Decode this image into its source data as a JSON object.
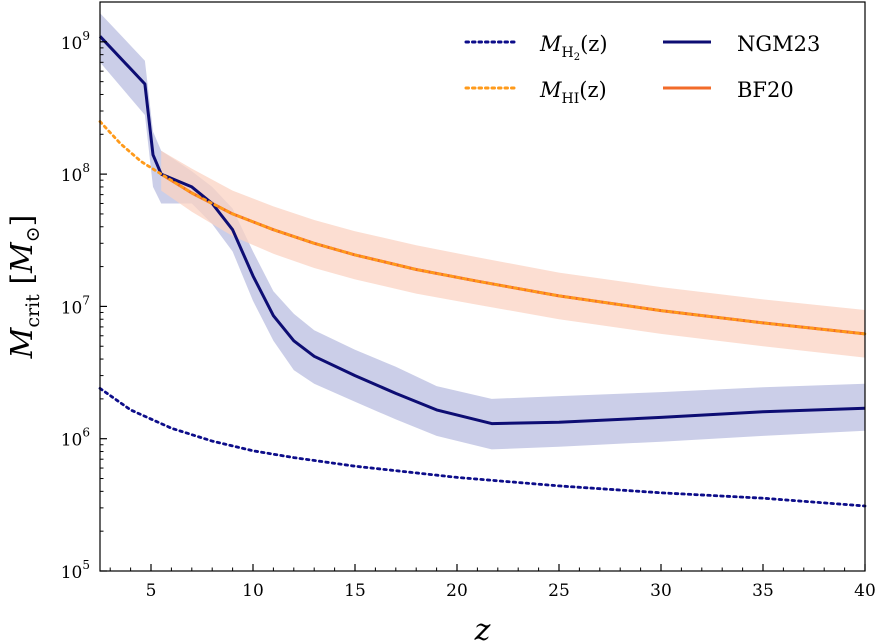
{
  "chart_data": {
    "type": "line",
    "xlabel": "z",
    "ylabel": "M_crit [M_⊙]",
    "ylabel_main": "M",
    "ylabel_sub": "crit",
    "ylabel_unit_open": " [",
    "ylabel_unit_main": "M",
    "ylabel_unit_sub": "⊙",
    "ylabel_unit_close": "]",
    "xlim": [
      2.5,
      40
    ],
    "ylim": [
      100000,
      2000000000
    ],
    "yscale": "log",
    "grid": false,
    "legend_position": "top-right",
    "x_ticks": [
      5,
      10,
      15,
      20,
      25,
      30,
      35,
      40
    ],
    "x_tick_labels": [
      "5",
      "10",
      "15",
      "20",
      "25",
      "30",
      "35",
      "40"
    ],
    "y_ticks": [
      100000,
      1000000,
      10000000,
      100000000,
      1000000000
    ],
    "y_tick_labels": [
      {
        "base": "10",
        "exp": "5"
      },
      {
        "base": "10",
        "exp": "6"
      },
      {
        "base": "10",
        "exp": "7"
      },
      {
        "base": "10",
        "exp": "8"
      },
      {
        "base": "10",
        "exp": "9"
      }
    ],
    "series": [
      {
        "name": "NGM23",
        "label_text": "NGM23",
        "style": "solid",
        "color": "#0d0d73",
        "band_color": "#b9bde0",
        "x": [
          2.5,
          4.7,
          5.1,
          5.5,
          7,
          8,
          9,
          10,
          11,
          12,
          13,
          15,
          17,
          19,
          21.7,
          25,
          30,
          35,
          40
        ],
        "y": [
          1100000000,
          480000000,
          140000000,
          100000000,
          80000000,
          60000000,
          38000000,
          17000000,
          8500000,
          5500000,
          4200000,
          3000000,
          2200000,
          1650000,
          1300000,
          1330000,
          1450000,
          1600000,
          1700000
        ],
        "y_low": [
          700000000,
          280000000,
          80000000,
          60000000,
          60000000,
          42000000,
          26000000,
          11000000,
          5500000,
          3300000,
          2600000,
          1900000,
          1400000,
          1050000,
          830000,
          870000,
          950000,
          1050000,
          1150000
        ],
        "y_high": [
          1650000000,
          720000000,
          210000000,
          150000000,
          105000000,
          80000000,
          55000000,
          26000000,
          13000000,
          8800000,
          6600000,
          4700000,
          3500000,
          2500000,
          2000000,
          2100000,
          2250000,
          2450000,
          2600000
        ]
      },
      {
        "name": "BF20",
        "label_text": "BF20",
        "style": "solid",
        "color": "#f26b2a",
        "band_color": "#fbd3c3",
        "x": [
          5.5,
          7,
          9,
          11,
          13,
          15,
          18,
          21,
          25,
          30,
          35,
          40
        ],
        "y": [
          100000000,
          72000000,
          50000000,
          38000000,
          30000000,
          24500000,
          19000000,
          15500000,
          12000000,
          9300000,
          7500000,
          6200000
        ],
        "y_low": [
          75000000,
          52000000,
          34000000,
          25000000,
          19500000,
          16000000,
          12500000,
          10300000,
          8000000,
          6200000,
          5000000,
          4100000
        ],
        "y_high": [
          150000000,
          110000000,
          75000000,
          57000000,
          45000000,
          37000000,
          29000000,
          23500000,
          18000000,
          14000000,
          11300000,
          9400000
        ]
      },
      {
        "name": "M_H2(z)",
        "label_main": "M",
        "label_sub": "H",
        "label_subsub": "2",
        "label_tail": "(z)",
        "style": "dotted",
        "color": "#0d0d8a",
        "x": [
          2.5,
          4,
          6,
          8,
          10,
          12,
          15,
          20,
          25,
          30,
          35,
          40
        ],
        "y": [
          2400000,
          1650000,
          1200000,
          960000,
          810000,
          720000,
          620000,
          510000,
          440000,
          390000,
          355000,
          310000
        ]
      },
      {
        "name": "M_HI(z)",
        "label_main": "M",
        "label_sub": "HI",
        "label_tail": "(z)",
        "style": "dotted",
        "color": "#ff9a1a",
        "x": [
          2.5,
          3.5,
          4.5,
          5.5,
          7,
          9,
          11,
          13,
          15,
          18,
          21,
          25,
          30,
          35,
          40
        ],
        "y": [
          250000000,
          170000000,
          125000000,
          100000000,
          72000000,
          50000000,
          38000000,
          30000000,
          24500000,
          19000000,
          15500000,
          12000000,
          9300000,
          7500000,
          6200000
        ]
      }
    ]
  }
}
